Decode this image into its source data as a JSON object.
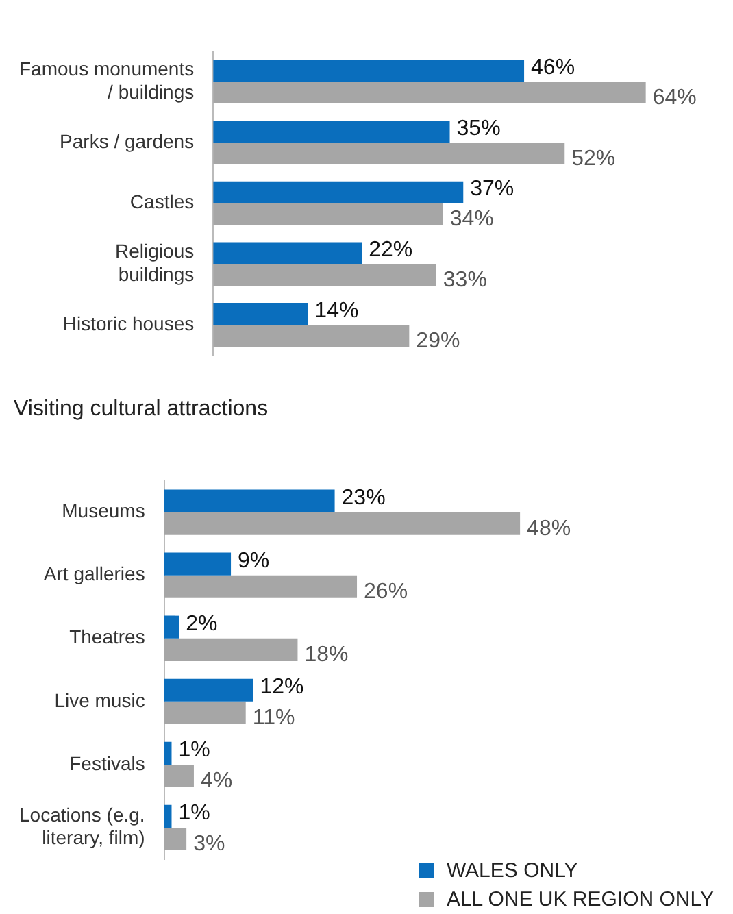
{
  "chart_data": [
    {
      "type": "bar",
      "orientation": "horizontal",
      "categories": [
        "Famous monuments / buildings",
        "Parks / gardens",
        "Castles",
        "Religious buildings",
        "Historic houses"
      ],
      "legend": false,
      "series": [
        {
          "color": "#0a6ebd",
          "values": [
            46,
            35,
            37,
            22,
            14
          ],
          "value_labels": [
            "46%",
            "35%",
            "37%",
            "22%",
            "14%"
          ]
        },
        {
          "color": "#a6a6a6",
          "values": [
            64,
            52,
            34,
            33,
            29
          ],
          "value_labels": [
            "64%",
            "52%",
            "34%",
            "33%",
            "29%"
          ]
        }
      ]
    },
    {
      "type": "bar",
      "orientation": "horizontal",
      "title": "Visiting cultural attractions",
      "categories": [
        "Museums",
        "Art galleries",
        "Theatres",
        "Live music",
        "Festivals",
        "Locations (e.g. literary, film)"
      ],
      "legend": "bottom right",
      "series": [
        {
          "name": "WALES ONLY",
          "color": "#0a6ebd",
          "values": [
            23,
            9,
            2,
            12,
            1,
            1
          ],
          "value_labels": [
            "23%",
            "9%",
            "2%",
            "12%",
            "1%",
            "1%"
          ]
        },
        {
          "name": "ALL ONE UK REGION ONLY",
          "color": "#a6a6a6",
          "values": [
            48,
            26,
            18,
            11,
            4,
            3
          ],
          "value_labels": [
            "48%",
            "26%",
            "18%",
            "11%",
            "4%",
            "3%"
          ]
        }
      ]
    }
  ]
}
